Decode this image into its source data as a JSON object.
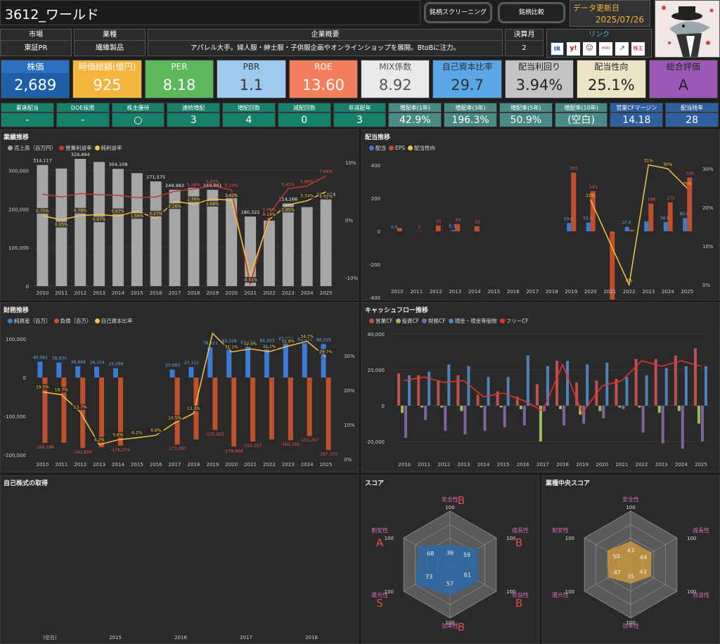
{
  "header": {
    "title": "3612_ワールド",
    "btn_screening": "銘柄スクリーニング",
    "btn_compare": "銘柄比較",
    "update_label": "データ更新日",
    "update_date": "2025/07/26"
  },
  "info": {
    "market_h": "市場",
    "market_v": "東証PR",
    "industry_h": "業種",
    "industry_v": "繊維製品",
    "overview_h": "企業概要",
    "overview_v": "アパレル大手。婦人服・紳士服・子供服企画やオンラインショップを展開。BtoBに注力。",
    "fy_h": "決算月",
    "fy_v": "2",
    "link_h": "リンク",
    "link_icons": [
      "IR",
      "yahoo",
      "株",
      "minkabu",
      "chart",
      "株主"
    ]
  },
  "metrics": [
    {
      "label": "株価",
      "value": "2,689",
      "bg": "#1f5fa8",
      "lbg": "#2a6fc0",
      "fg": "#fff"
    },
    {
      "label": "時価総額(億円)",
      "value": "925",
      "bg": "#f4b53f",
      "lbg": "#f4b53f",
      "fg": "#fff"
    },
    {
      "label": "PER",
      "value": "8.18",
      "bg": "#5cb85c",
      "lbg": "#5cb85c",
      "fg": "#fff"
    },
    {
      "label": "PBR",
      "value": "1.1",
      "bg": "#9ec9ec",
      "lbg": "#9ec9ec",
      "fg": "#333"
    },
    {
      "label": "ROE",
      "value": "13.60",
      "bg": "#f47f5e",
      "lbg": "#f47f5e",
      "fg": "#fff"
    },
    {
      "label": "MIX係数",
      "value": "8.92",
      "bg": "#e9e9e9",
      "lbg": "#e9e9e9",
      "fg": "#555"
    },
    {
      "label": "自己資本比率",
      "value": "29.7",
      "bg": "#5aa6e6",
      "lbg": "#5aa6e6",
      "fg": "#333"
    },
    {
      "label": "配当利回り",
      "value": "3.94%",
      "bg": "#c4c4c4",
      "lbg": "#c4c4c4",
      "fg": "#222"
    },
    {
      "label": "配当性向",
      "value": "25.1%",
      "bg": "#ede3c7",
      "lbg": "#ede3c7",
      "fg": "#222"
    },
    {
      "label": "総合評価",
      "value": "A",
      "bg": "#9b59b6",
      "lbg": "#9b59b6",
      "fg": "#222"
    }
  ],
  "stats": [
    {
      "label": "累進配当",
      "value": "-",
      "c": "#17806b"
    },
    {
      "label": "DOE採用",
      "value": "-",
      "c": "#17806b"
    },
    {
      "label": "株主優待",
      "value": "○",
      "c": "#17806b"
    },
    {
      "label": "連続増配",
      "value": "3",
      "c": "#17806b"
    },
    {
      "label": "増配回数",
      "value": "4",
      "c": "#17806b"
    },
    {
      "label": "減配回数",
      "value": "0",
      "c": "#17806b"
    },
    {
      "label": "非減配年",
      "value": "3",
      "c": "#17806b"
    },
    {
      "label": "増配率(1年)",
      "value": "42.9%",
      "c": "#4a8a86"
    },
    {
      "label": "増配率(3年)",
      "value": "196.3%",
      "c": "#4a8a86"
    },
    {
      "label": "増配率(5年)",
      "value": "50.9%",
      "c": "#4a8a86"
    },
    {
      "label": "増配率(10年)",
      "value": "(空白)",
      "c": "#4a8a86"
    },
    {
      "label": "営業CFマージン",
      "value": "14.18",
      "c": "#2e5f9e"
    },
    {
      "label": "配当残年",
      "value": "28",
      "c": "#2e5f9e"
    }
  ],
  "panels": {
    "perf": "業績推移",
    "div": "配当推移",
    "fin": "財務推移",
    "cf": "キャッシュフロー推移",
    "buyback": "自己株式の取得",
    "score": "スコア",
    "ind_score": "業種中央スコア"
  },
  "legends": {
    "perf": [
      "売上高（百万円）",
      "営業利益率",
      "純利益率"
    ],
    "div": [
      "配当",
      "EPS",
      "配当性向"
    ],
    "fin": [
      "純資産（百万）",
      "負債（百万）",
      "自己資本比率"
    ],
    "cf": [
      "営業CF",
      "投資CF",
      "財務CF",
      "現金・現金等価物",
      "フリーCF"
    ]
  },
  "colors": {
    "sales": "#a6a6a6",
    "oplr": "#c0392b",
    "netr": "#f4c542",
    "div": "#3a7bd5",
    "eps": "#c0502b",
    "payout": "#f4c542",
    "assets": "#3a7bd5",
    "debt": "#c0502b",
    "eqr": "#f4c542",
    "opcf": "#c0504d",
    "invcf": "#9bbb59",
    "fincf": "#8064a2",
    "cash": "#4f81bd",
    "fcf": "#e0342f"
  },
  "years": [
    "2010",
    "2011",
    "2012",
    "2013",
    "2014",
    "2015",
    "2016",
    "2017",
    "2018",
    "2019",
    "2020",
    "2021",
    "2022",
    "2023",
    "2024",
    "2025"
  ],
  "perf_chart": {
    "ylim": [
      0,
      350000
    ],
    "yticks": [
      "0",
      "100,000",
      "200,000",
      "300,000"
    ],
    "y2ticks": [
      "10%",
      "0%",
      "-10%"
    ],
    "sales": [
      314117,
      305000,
      329894,
      322000,
      304108,
      293000,
      271575,
      249983,
      255000,
      249861,
      240000,
      180322,
      170000,
      214266,
      205000,
      225658
    ],
    "sales_labels": [
      "314,117",
      "",
      "329,894",
      "",
      "304,108",
      "",
      "271,575",
      "249,983",
      "",
      "249,861",
      "",
      "180,322",
      "",
      "214,266",
      "",
      "225,658"
    ],
    "op_margin": [
      4.5,
      4.0,
      4.6,
      4.4,
      4.3,
      3.9,
      4.0,
      5.0,
      5.38,
      5.92,
      5.23,
      -11.2,
      1.06,
      5.45,
      5.9,
      7.66
    ],
    "op_labels": [
      "",
      "",
      "",
      "",
      "",
      "",
      "",
      "",
      "5.38%",
      "5.92%",
      "5.23%",
      "",
      "1.06%",
      "5.45%",
      "5.90%",
      "7.66%"
    ],
    "net_margin": [
      0.75,
      0.05,
      0.78,
      0.97,
      0.67,
      1.56,
      0.27,
      3.26,
      2.76,
      3.68,
      3.42,
      -9.51,
      0.14,
      2.65,
      3.34,
      4.92
    ],
    "net_labels": [
      "0.75%",
      "0.05%",
      "0.78%",
      "0.97%",
      "0.67%",
      "1.56%",
      "0.27%",
      "3.26%",
      "2.76%",
      "3.68%",
      "3.42%",
      "-9.51%",
      "0.14%",
      "2.65%",
      "3.34%",
      "4.92%"
    ]
  },
  "div_chart": {
    "yticks": [
      "400",
      "200",
      "0",
      "-200",
      "-400"
    ],
    "y2ticks": [
      "30%",
      "20%",
      "10%",
      "0%"
    ],
    "dividend": [
      0,
      0,
      0,
      6.3,
      0,
      0,
      0,
      0,
      0,
      50,
      53,
      0,
      27,
      60,
      56,
      80
    ],
    "div_labels": [
      "0.0",
      "",
      "",
      "6.3",
      "",
      "",
      "",
      "",
      "",
      "50.0",
      "53.0",
      "",
      "27.0",
      "",
      "56.0",
      "80.0"
    ],
    "eps": [
      20,
      2,
      35,
      44,
      30,
      0,
      0,
      0,
      0,
      355,
      243,
      -511,
      8,
      168,
      175,
      326
    ],
    "eps_labels": [
      "",
      "2",
      "35",
      "44",
      "30",
      "",
      "",
      "",
      "",
      "355",
      "243",
      "-511",
      "",
      "168",
      "175",
      "326"
    ],
    "payout": [
      null,
      null,
      null,
      null,
      null,
      null,
      null,
      null,
      null,
      null,
      22,
      null,
      0,
      31,
      30,
      25
    ],
    "payout_labels": [
      "",
      "",
      "",
      "",
      "",
      "",
      "",
      "",
      "",
      "",
      "22%",
      "",
      "0%",
      "31%",
      "30%",
      "25%"
    ]
  },
  "fin_chart": {
    "yticks": [
      "100,000",
      "0",
      "-100,000",
      "-200,000"
    ],
    "y2ticks": [
      "30%",
      "20%",
      "10%",
      "0%"
    ],
    "assets": [
      40981,
      38930,
      28868,
      28104,
      24098,
      0,
      0,
      20683,
      27112,
      78121,
      83328,
      80029,
      84303,
      89229,
      88618,
      86505
    ],
    "assets_labels": [
      "40,981",
      "38,930",
      "28,868",
      "28,104",
      "24,098",
      "",
      "",
      "20,683",
      "27,112",
      "78,121",
      "83,328",
      "80,029",
      "84,303",
      "89,229",
      "88,618",
      "86,505"
    ],
    "debt": [
      -169186,
      -168000,
      -181899,
      -180000,
      -176274,
      0,
      0,
      -173087,
      -160000,
      -135425,
      -178668,
      -165357,
      -160000,
      -162192,
      -151267,
      -187375
    ],
    "debt_labels": [
      "-169,186",
      "",
      "-181,899",
      "",
      "-176,274",
      "",
      "",
      "-173,087",
      "",
      "-135,425",
      "-178,668",
      "-165,357",
      "",
      "-162,192",
      "-151,267",
      "-187,375"
    ],
    "eq_ratio": [
      19.5,
      18.7,
      13.7,
      4.2,
      5.6,
      6.2,
      6.9,
      10.5,
      13.3,
      36.5,
      31.1,
      32.0,
      31.2,
      32.8,
      34.2,
      29.7
    ],
    "eq_labels": [
      "19.5%",
      "18.7%",
      "13.7%",
      "4.2%",
      "5.6%",
      "6.2%",
      "6.9%",
      "10.5%",
      "13.3%",
      "",
      "31.1%",
      "32.0%",
      "31.2%",
      "32.8%",
      "34.2%",
      "29.7%"
    ]
  },
  "cf_chart": {
    "yticks": [
      "40,000",
      "20,000",
      "0",
      "-20,000"
    ],
    "opcf": [
      18000,
      17000,
      14000,
      17000,
      6000,
      8000,
      5000,
      12000,
      25000,
      13000,
      14000,
      15000,
      26000,
      26000,
      28000,
      32000
    ],
    "invcf": [
      -4000,
      -1000,
      -1000,
      -3000,
      -1000,
      -1000,
      -2000,
      -20000,
      -2000,
      -5000,
      -3000,
      -1000,
      -1000,
      -4000,
      -3000,
      -10000
    ],
    "fincf": [
      -18000,
      -8000,
      -14000,
      -16000,
      -14000,
      -12000,
      -11000,
      -3000,
      -11000,
      -10000,
      -7000,
      -2000,
      -15000,
      -21000,
      -24000,
      -20000
    ],
    "cash": [
      17000,
      19000,
      23000,
      22000,
      16000,
      16000,
      28000,
      22000,
      25000,
      23000,
      24000,
      16000,
      17000,
      21000,
      22000,
      22000
    ],
    "fcf": [
      14000,
      16000,
      13000,
      14000,
      5000,
      7000,
      3000,
      -3000,
      23000,
      -4000,
      11000,
      14000,
      25000,
      22000,
      25000,
      22000
    ]
  },
  "buyback_chart": {
    "xlabels": [
      "(空白)",
      "2015",
      "2016",
      "2017",
      "2018"
    ]
  },
  "score_chart": {
    "axes": [
      "安全性",
      "成長性",
      "収益性",
      "効率性",
      "還元性",
      "割安性"
    ],
    "max_label": "100",
    "values": [
      36,
      59,
      61,
      57,
      73,
      68
    ],
    "grades": [
      "B",
      "B",
      "B",
      "B",
      "S",
      "A"
    ],
    "fill": "#2e6aa8",
    "grade_color": "#e0504d"
  },
  "ind_score_chart": {
    "axes": [
      "安全性",
      "成長性",
      "収益性",
      "効率性",
      "還元性",
      "割安性"
    ],
    "max_label": "100",
    "values": [
      43,
      44,
      43,
      35,
      47,
      50
    ],
    "fill": "#c8963e"
  }
}
